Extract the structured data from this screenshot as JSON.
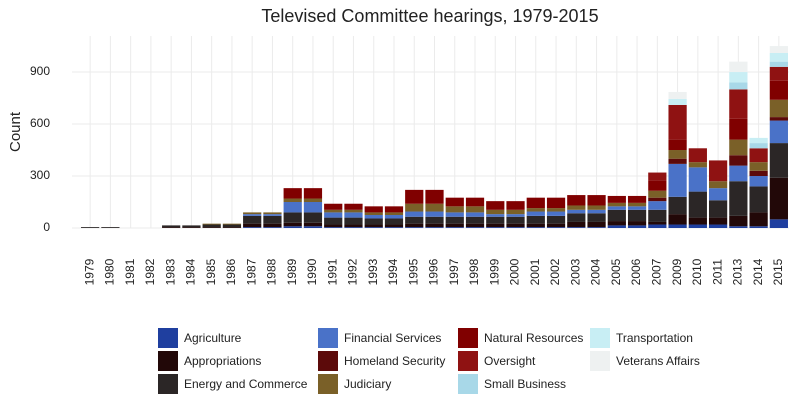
{
  "chart_data": {
    "type": "stacked_bar",
    "title": "Televised Committee hearings, 1979-2015",
    "y_label": "Count",
    "categories": [
      "1979",
      "1980",
      "1981",
      "1982",
      "1983",
      "1984",
      "1985",
      "1986",
      "1987",
      "1988",
      "1989",
      "1990",
      "1991",
      "1992",
      "1993",
      "1994",
      "1995",
      "1996",
      "1997",
      "1998",
      "1999",
      "2000",
      "2001",
      "2002",
      "2003",
      "2004",
      "2005",
      "2006",
      "2007",
      "2009",
      "2010",
      "2011",
      "2013",
      "2014",
      "2015"
    ],
    "ylim": [
      0,
      1108
    ],
    "yticks": [
      0,
      300,
      600,
      900
    ],
    "grid": true,
    "series": [
      {
        "name": "Agriculture",
        "color": "#1f3f9f",
        "values": [
          0,
          0,
          0,
          0,
          0,
          0,
          0,
          0,
          5,
          5,
          10,
          10,
          5,
          5,
          5,
          5,
          5,
          5,
          5,
          5,
          5,
          5,
          5,
          5,
          5,
          5,
          15,
          15,
          20,
          20,
          20,
          20,
          10,
          10,
          50
        ]
      },
      {
        "name": "Appropriations",
        "color": "#220808",
        "values": [
          0,
          0,
          0,
          0,
          5,
          5,
          5,
          5,
          20,
          20,
          20,
          20,
          15,
          15,
          15,
          15,
          20,
          20,
          20,
          20,
          20,
          20,
          20,
          20,
          30,
          30,
          25,
          25,
          15,
          60,
          40,
          40,
          60,
          80,
          240
        ]
      },
      {
        "name": "Energy and Commerce",
        "color": "#2b2626",
        "values": [
          5,
          5,
          0,
          0,
          10,
          10,
          15,
          15,
          45,
          45,
          60,
          60,
          40,
          40,
          35,
          35,
          40,
          40,
          40,
          40,
          40,
          40,
          45,
          45,
          50,
          50,
          65,
          65,
          70,
          100,
          150,
          100,
          200,
          150,
          200
        ]
      },
      {
        "name": "Financial Services",
        "color": "#4a72c8",
        "values": [
          0,
          0,
          0,
          0,
          0,
          0,
          0,
          0,
          10,
          10,
          60,
          60,
          30,
          30,
          20,
          20,
          30,
          30,
          25,
          25,
          15,
          15,
          25,
          25,
          20,
          20,
          20,
          20,
          50,
          190,
          140,
          70,
          90,
          60,
          130
        ]
      },
      {
        "name": "Homeland Security",
        "color": "#5c0a0a",
        "values": [
          0,
          0,
          0,
          0,
          0,
          0,
          0,
          0,
          0,
          0,
          0,
          0,
          0,
          0,
          0,
          0,
          0,
          0,
          0,
          0,
          0,
          0,
          0,
          0,
          0,
          0,
          0,
          0,
          20,
          30,
          0,
          0,
          60,
          30,
          20
        ]
      },
      {
        "name": "Judiciary",
        "color": "#7a6028",
        "values": [
          0,
          0,
          0,
          0,
          0,
          0,
          5,
          5,
          10,
          10,
          20,
          20,
          15,
          15,
          15,
          15,
          45,
          45,
          35,
          35,
          25,
          25,
          20,
          20,
          25,
          25,
          20,
          20,
          40,
          50,
          30,
          40,
          90,
          50,
          100
        ]
      },
      {
        "name": "Natural Resources",
        "color": "#800000",
        "values": [
          0,
          0,
          0,
          0,
          0,
          0,
          0,
          0,
          0,
          0,
          60,
          60,
          35,
          35,
          35,
          35,
          80,
          80,
          50,
          50,
          50,
          50,
          60,
          60,
          60,
          60,
          40,
          40,
          60,
          60,
          0,
          0,
          120,
          0,
          110
        ]
      },
      {
        "name": "Oversight",
        "color": "#8f1212",
        "values": [
          0,
          0,
          0,
          0,
          0,
          0,
          0,
          0,
          0,
          0,
          0,
          0,
          0,
          0,
          0,
          0,
          0,
          0,
          0,
          0,
          0,
          0,
          0,
          0,
          0,
          0,
          0,
          0,
          45,
          200,
          80,
          120,
          170,
          80,
          80
        ]
      },
      {
        "name": "Small Business",
        "color": "#a8d8e8",
        "values": [
          0,
          0,
          0,
          0,
          0,
          0,
          0,
          0,
          0,
          0,
          0,
          0,
          0,
          0,
          0,
          0,
          0,
          0,
          0,
          0,
          0,
          0,
          0,
          0,
          0,
          0,
          0,
          0,
          0,
          0,
          0,
          0,
          40,
          30,
          30
        ]
      },
      {
        "name": "Transportation",
        "color": "#c8eef4",
        "values": [
          0,
          0,
          0,
          0,
          0,
          0,
          0,
          0,
          0,
          0,
          0,
          0,
          0,
          0,
          0,
          0,
          0,
          0,
          0,
          0,
          0,
          0,
          0,
          0,
          0,
          0,
          0,
          0,
          0,
          35,
          0,
          0,
          60,
          30,
          50
        ]
      },
      {
        "name": "Veterans Affairs",
        "color": "#eef1f1",
        "values": [
          0,
          0,
          0,
          0,
          0,
          0,
          0,
          0,
          0,
          0,
          0,
          0,
          0,
          0,
          0,
          0,
          0,
          0,
          0,
          0,
          0,
          0,
          0,
          0,
          0,
          0,
          0,
          0,
          0,
          40,
          0,
          0,
          60,
          0,
          40
        ]
      }
    ]
  }
}
